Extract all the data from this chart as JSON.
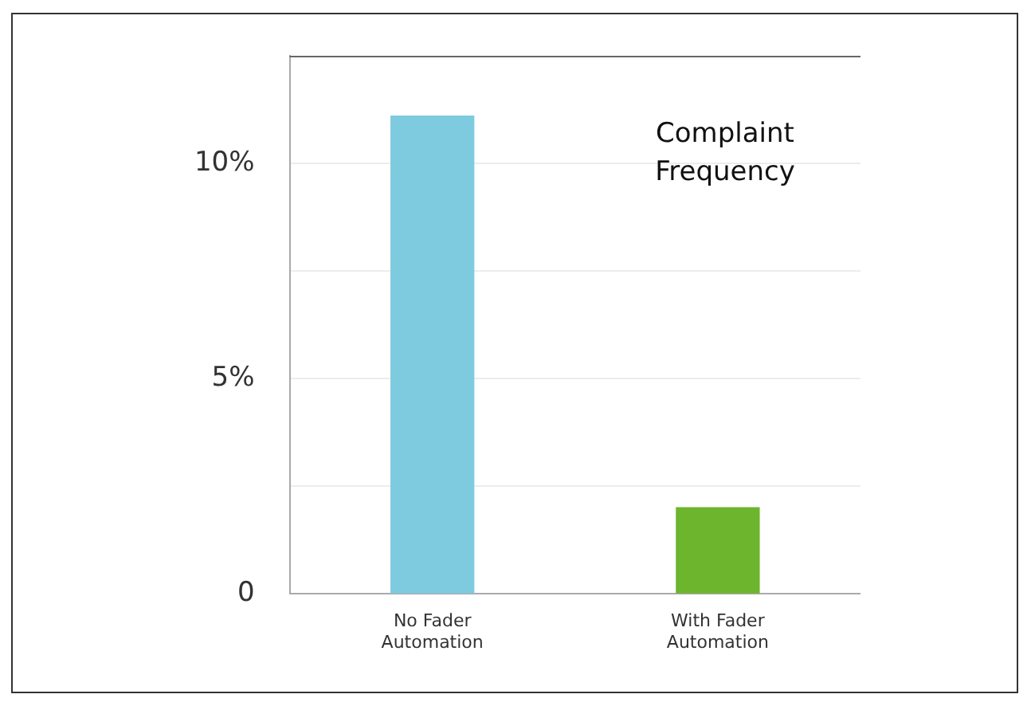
{
  "chart_data": {
    "type": "bar",
    "title": "Complaint Frequency",
    "categories": [
      "No Fader Automation",
      "With Fader Automation"
    ],
    "values": [
      11.1,
      2.0
    ],
    "colors": [
      "#7ecbe0",
      "#6cb52d"
    ],
    "ylim": [
      0,
      12.5
    ],
    "yticks": [
      {
        "value": 0,
        "label": "0"
      },
      {
        "value": 2.5,
        "label": null
      },
      {
        "value": 5,
        "label": "5%"
      },
      {
        "value": 7.5,
        "label": null
      },
      {
        "value": 10,
        "label": "10%"
      }
    ],
    "grid": "y",
    "legend": false
  }
}
